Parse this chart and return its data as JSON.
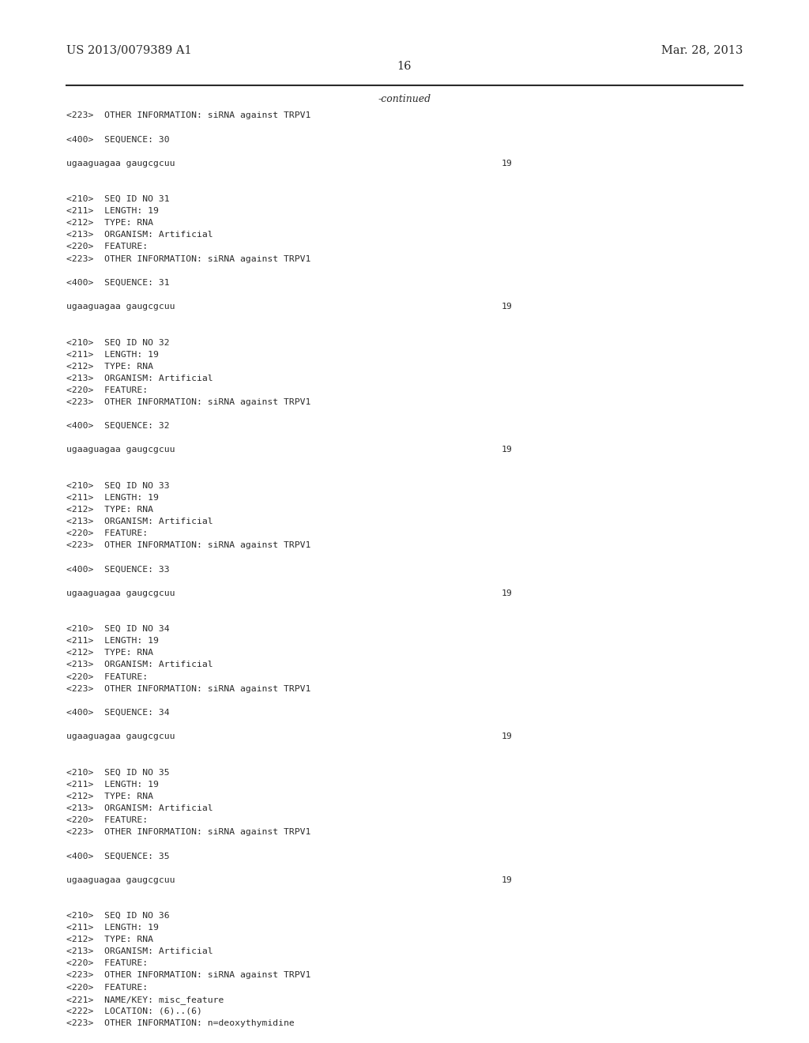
{
  "background_color": "#ffffff",
  "header_left": "US 2013/0079389 A1",
  "header_right": "Mar. 28, 2013",
  "page_number": "16",
  "continued_label": "-continued",
  "text_color": "#2b2b2b",
  "content_lines": [
    {
      "text": "<223>  OTHER INFORMATION: siRNA against TRPV1",
      "number": null
    },
    {
      "text": "",
      "number": null
    },
    {
      "text": "<400>  SEQUENCE: 30",
      "number": null
    },
    {
      "text": "",
      "number": null
    },
    {
      "text": "ugaaguagaa gaugcgcuu",
      "number": "19"
    },
    {
      "text": "",
      "number": null
    },
    {
      "text": "",
      "number": null
    },
    {
      "text": "<210>  SEQ ID NO 31",
      "number": null
    },
    {
      "text": "<211>  LENGTH: 19",
      "number": null
    },
    {
      "text": "<212>  TYPE: RNA",
      "number": null
    },
    {
      "text": "<213>  ORGANISM: Artificial",
      "number": null
    },
    {
      "text": "<220>  FEATURE:",
      "number": null
    },
    {
      "text": "<223>  OTHER INFORMATION: siRNA against TRPV1",
      "number": null
    },
    {
      "text": "",
      "number": null
    },
    {
      "text": "<400>  SEQUENCE: 31",
      "number": null
    },
    {
      "text": "",
      "number": null
    },
    {
      "text": "ugaaguagaa gaugcgcuu",
      "number": "19"
    },
    {
      "text": "",
      "number": null
    },
    {
      "text": "",
      "number": null
    },
    {
      "text": "<210>  SEQ ID NO 32",
      "number": null
    },
    {
      "text": "<211>  LENGTH: 19",
      "number": null
    },
    {
      "text": "<212>  TYPE: RNA",
      "number": null
    },
    {
      "text": "<213>  ORGANISM: Artificial",
      "number": null
    },
    {
      "text": "<220>  FEATURE:",
      "number": null
    },
    {
      "text": "<223>  OTHER INFORMATION: siRNA against TRPV1",
      "number": null
    },
    {
      "text": "",
      "number": null
    },
    {
      "text": "<400>  SEQUENCE: 32",
      "number": null
    },
    {
      "text": "",
      "number": null
    },
    {
      "text": "ugaaguagaa gaugcgcuu",
      "number": "19"
    },
    {
      "text": "",
      "number": null
    },
    {
      "text": "",
      "number": null
    },
    {
      "text": "<210>  SEQ ID NO 33",
      "number": null
    },
    {
      "text": "<211>  LENGTH: 19",
      "number": null
    },
    {
      "text": "<212>  TYPE: RNA",
      "number": null
    },
    {
      "text": "<213>  ORGANISM: Artificial",
      "number": null
    },
    {
      "text": "<220>  FEATURE:",
      "number": null
    },
    {
      "text": "<223>  OTHER INFORMATION: siRNA against TRPV1",
      "number": null
    },
    {
      "text": "",
      "number": null
    },
    {
      "text": "<400>  SEQUENCE: 33",
      "number": null
    },
    {
      "text": "",
      "number": null
    },
    {
      "text": "ugaaguagaa gaugcgcuu",
      "number": "19"
    },
    {
      "text": "",
      "number": null
    },
    {
      "text": "",
      "number": null
    },
    {
      "text": "<210>  SEQ ID NO 34",
      "number": null
    },
    {
      "text": "<211>  LENGTH: 19",
      "number": null
    },
    {
      "text": "<212>  TYPE: RNA",
      "number": null
    },
    {
      "text": "<213>  ORGANISM: Artificial",
      "number": null
    },
    {
      "text": "<220>  FEATURE:",
      "number": null
    },
    {
      "text": "<223>  OTHER INFORMATION: siRNA against TRPV1",
      "number": null
    },
    {
      "text": "",
      "number": null
    },
    {
      "text": "<400>  SEQUENCE: 34",
      "number": null
    },
    {
      "text": "",
      "number": null
    },
    {
      "text": "ugaaguagaa gaugcgcuu",
      "number": "19"
    },
    {
      "text": "",
      "number": null
    },
    {
      "text": "",
      "number": null
    },
    {
      "text": "<210>  SEQ ID NO 35",
      "number": null
    },
    {
      "text": "<211>  LENGTH: 19",
      "number": null
    },
    {
      "text": "<212>  TYPE: RNA",
      "number": null
    },
    {
      "text": "<213>  ORGANISM: Artificial",
      "number": null
    },
    {
      "text": "<220>  FEATURE:",
      "number": null
    },
    {
      "text": "<223>  OTHER INFORMATION: siRNA against TRPV1",
      "number": null
    },
    {
      "text": "",
      "number": null
    },
    {
      "text": "<400>  SEQUENCE: 35",
      "number": null
    },
    {
      "text": "",
      "number": null
    },
    {
      "text": "ugaaguagaa gaugcgcuu",
      "number": "19"
    },
    {
      "text": "",
      "number": null
    },
    {
      "text": "",
      "number": null
    },
    {
      "text": "<210>  SEQ ID NO 36",
      "number": null
    },
    {
      "text": "<211>  LENGTH: 19",
      "number": null
    },
    {
      "text": "<212>  TYPE: RNA",
      "number": null
    },
    {
      "text": "<213>  ORGANISM: Artificial",
      "number": null
    },
    {
      "text": "<220>  FEATURE:",
      "number": null
    },
    {
      "text": "<223>  OTHER INFORMATION: siRNA against TRPV1",
      "number": null
    },
    {
      "text": "<220>  FEATURE:",
      "number": null
    },
    {
      "text": "<221>  NAME/KEY: misc_feature",
      "number": null
    },
    {
      "text": "<222>  LOCATION: (6)..(6)",
      "number": null
    },
    {
      "text": "<223>  OTHER INFORMATION: n=deoxythymidine",
      "number": null
    }
  ]
}
